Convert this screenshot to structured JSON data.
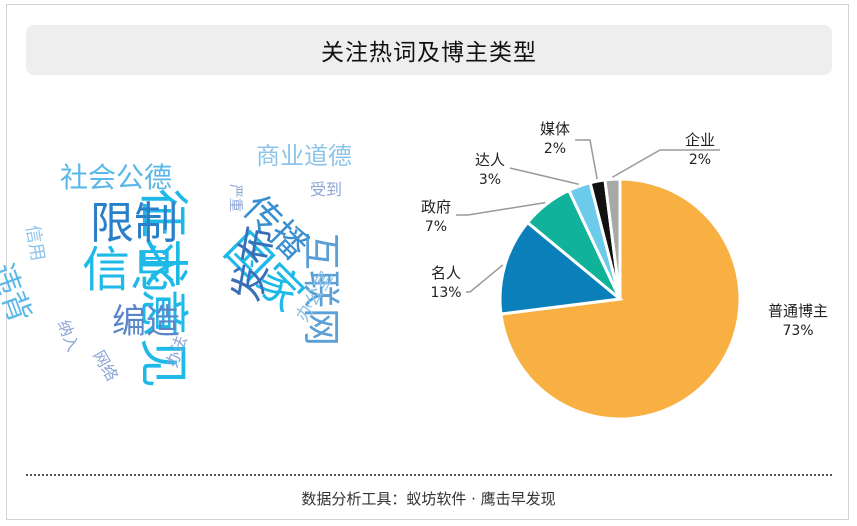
{
  "title": "关注热词及博主类型",
  "footer": "数据分析工具：蚁坊软件 · 鹰击早发现",
  "wordcloud": {
    "words": [
      {
        "text": "征求意见",
        "color": "#1fb9e8"
      },
      {
        "text": "信息",
        "color": "#1fb9e8"
      },
      {
        "text": "限制",
        "color": "#2a7fc9"
      },
      {
        "text": "国家",
        "color": "#1fb9e8"
      },
      {
        "text": "互联网",
        "color": "#5a9fd6"
      },
      {
        "text": "传播",
        "color": "#3a8fd0"
      },
      {
        "text": "发布",
        "color": "#3a6fb8"
      },
      {
        "text": "编造",
        "color": "#5a86c9"
      },
      {
        "text": "违背",
        "color": "#5ab8e8"
      },
      {
        "text": "社会公德",
        "color": "#5ab8e8"
      },
      {
        "text": "商业道德",
        "color": "#8dc4ea"
      },
      {
        "text": "信用",
        "color": "#8dc4ea"
      },
      {
        "text": "纳入",
        "color": "#8da4d6"
      },
      {
        "text": "网络",
        "color": "#8da4d6"
      },
      {
        "text": "办法",
        "color": "#8da4d6"
      },
      {
        "text": "办公室",
        "color": "#8dc4ea"
      },
      {
        "text": "受到",
        "color": "#8da4d6"
      },
      {
        "text": "严重",
        "color": "#8da4d6"
      }
    ]
  },
  "chart_data": {
    "type": "pie",
    "slices": [
      {
        "label": "普通博主",
        "value": 73,
        "pct": "73%",
        "color": "#f8b043"
      },
      {
        "label": "名人",
        "value": 13,
        "pct": "13%",
        "color": "#0a7fba"
      },
      {
        "label": "政府",
        "value": 7,
        "pct": "7%",
        "color": "#10b39a"
      },
      {
        "label": "达人",
        "value": 3,
        "pct": "3%",
        "color": "#6ccaea"
      },
      {
        "label": "媒体",
        "value": 2,
        "pct": "2%",
        "color": "#111111"
      },
      {
        "label": "企业",
        "value": 2,
        "pct": "2%",
        "color": "#a8a8a8"
      }
    ]
  }
}
